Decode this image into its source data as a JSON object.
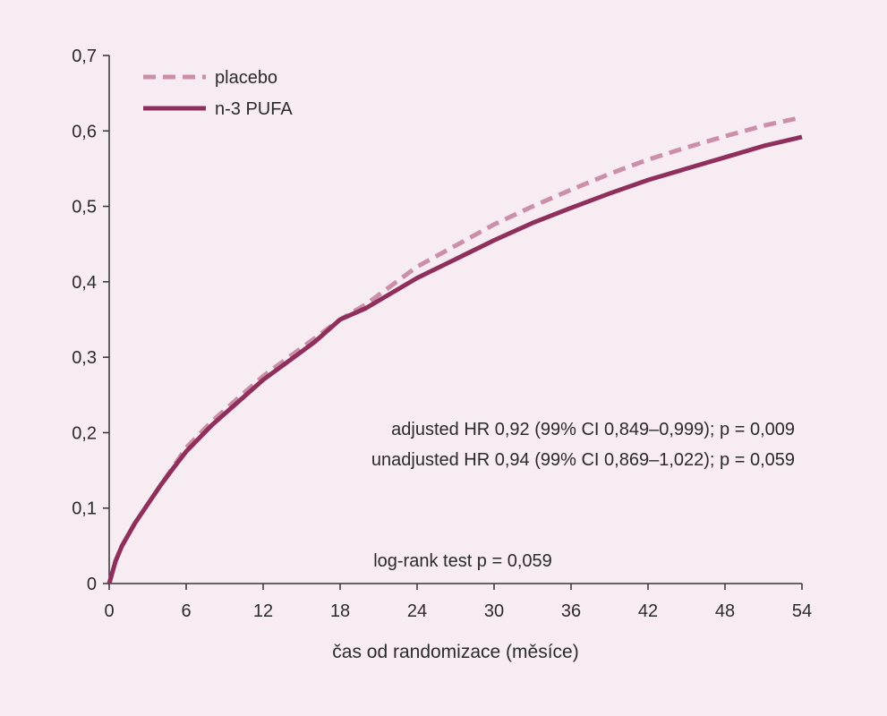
{
  "chart_data": {
    "type": "line",
    "title": "",
    "xlabel": "čas od randomizace (měsíce)",
    "ylabel": "",
    "xlim": [
      0,
      54
    ],
    "ylim": [
      0,
      0.7
    ],
    "x_ticks": [
      0,
      6,
      12,
      18,
      24,
      30,
      36,
      42,
      48,
      54
    ],
    "x_tick_labels": [
      "0",
      "6",
      "12",
      "18",
      "24",
      "30",
      "36",
      "42",
      "48",
      "54"
    ],
    "y_ticks": [
      0,
      0.1,
      0.2,
      0.3,
      0.4,
      0.5,
      0.6,
      0.7
    ],
    "y_tick_labels": [
      "0",
      "0,1",
      "0,2",
      "0,3",
      "0,4",
      "0,5",
      "0,6",
      "0,7"
    ],
    "grid": false,
    "legend_position": "top-left",
    "series": [
      {
        "name": "placebo",
        "style": "dashed",
        "color": "#cc8fa8",
        "points": [
          [
            0,
            0
          ],
          [
            0.5,
            0.03
          ],
          [
            1,
            0.05
          ],
          [
            2,
            0.08
          ],
          [
            3,
            0.105
          ],
          [
            4,
            0.13
          ],
          [
            5,
            0.155
          ],
          [
            6,
            0.18
          ],
          [
            8,
            0.215
          ],
          [
            10,
            0.245
          ],
          [
            12,
            0.275
          ],
          [
            14,
            0.3
          ],
          [
            16,
            0.325
          ],
          [
            18,
            0.35
          ],
          [
            20,
            0.37
          ],
          [
            22,
            0.395
          ],
          [
            24,
            0.42
          ],
          [
            27,
            0.448
          ],
          [
            30,
            0.476
          ],
          [
            33,
            0.5
          ],
          [
            36,
            0.522
          ],
          [
            39,
            0.543
          ],
          [
            42,
            0.562
          ],
          [
            45,
            0.578
          ],
          [
            48,
            0.593
          ],
          [
            51,
            0.607
          ],
          [
            54,
            0.618
          ]
        ]
      },
      {
        "name": "n-3 PUFA",
        "style": "solid",
        "color": "#8e2f5c",
        "points": [
          [
            0,
            0
          ],
          [
            0.5,
            0.03
          ],
          [
            1,
            0.05
          ],
          [
            2,
            0.08
          ],
          [
            3,
            0.105
          ],
          [
            4,
            0.13
          ],
          [
            5,
            0.153
          ],
          [
            6,
            0.175
          ],
          [
            8,
            0.21
          ],
          [
            10,
            0.24
          ],
          [
            12,
            0.27
          ],
          [
            14,
            0.295
          ],
          [
            16,
            0.32
          ],
          [
            18,
            0.35
          ],
          [
            20,
            0.365
          ],
          [
            22,
            0.385
          ],
          [
            24,
            0.405
          ],
          [
            27,
            0.43
          ],
          [
            30,
            0.455
          ],
          [
            33,
            0.478
          ],
          [
            36,
            0.498
          ],
          [
            39,
            0.517
          ],
          [
            42,
            0.535
          ],
          [
            45,
            0.55
          ],
          [
            48,
            0.565
          ],
          [
            51,
            0.58
          ],
          [
            54,
            0.592
          ]
        ]
      }
    ],
    "annotations": {
      "adjusted": "adjusted HR 0,92 (99% CI 0,849–0,999); p = 0,009",
      "unadjusted": "unadjusted HR 0,94 (99% CI 0,869–1,022); p = 0,059",
      "logrank": "log-rank test p = 0,059"
    }
  }
}
